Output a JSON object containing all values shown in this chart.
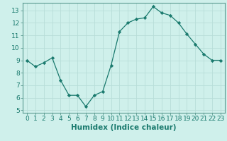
{
  "x": [
    0,
    1,
    2,
    3,
    4,
    5,
    6,
    7,
    8,
    9,
    10,
    11,
    12,
    13,
    14,
    15,
    16,
    17,
    18,
    19,
    20,
    21,
    22,
    23
  ],
  "y": [
    9.0,
    8.5,
    8.8,
    9.2,
    7.4,
    6.2,
    6.2,
    5.3,
    6.2,
    6.5,
    8.6,
    11.3,
    12.0,
    12.3,
    12.4,
    13.3,
    12.8,
    12.6,
    12.0,
    11.1,
    10.3,
    9.5,
    9.0,
    9.0
  ],
  "line_color": "#1a7a6e",
  "marker": "D",
  "marker_size": 2.2,
  "bg_color": "#cff0eb",
  "grid_color": "#b8ddd8",
  "xlabel": "Humidex (Indice chaleur)",
  "xlim": [
    -0.5,
    23.5
  ],
  "ylim": [
    4.8,
    13.6
  ],
  "yticks": [
    5,
    6,
    7,
    8,
    9,
    10,
    11,
    12,
    13
  ],
  "xticks": [
    0,
    1,
    2,
    3,
    4,
    5,
    6,
    7,
    8,
    9,
    10,
    11,
    12,
    13,
    14,
    15,
    16,
    17,
    18,
    19,
    20,
    21,
    22,
    23
  ],
  "tick_fontsize": 6.5,
  "xlabel_fontsize": 7.5,
  "spine_color": "#5a9a90"
}
